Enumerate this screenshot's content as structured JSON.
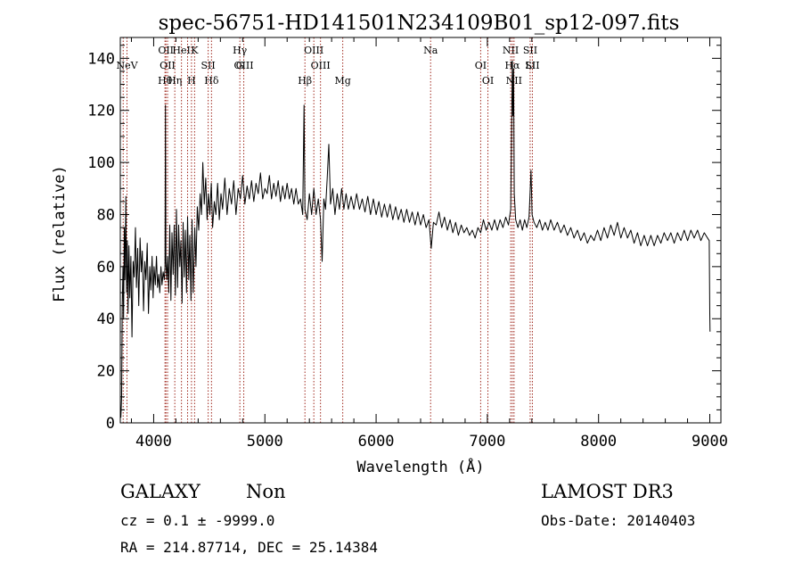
{
  "chart_data": {
    "type": "line",
    "title": "spec-56751-HD141501N234109B01_sp12-097.fits",
    "xlabel": "Wavelength (Å)",
    "ylabel": "Flux (relative)",
    "xlim": [
      3700,
      9100
    ],
    "ylim": [
      0,
      148
    ],
    "xticks": [
      4000,
      5000,
      6000,
      7000,
      8000,
      9000
    ],
    "yticks": [
      0,
      20,
      40,
      60,
      80,
      100,
      120,
      140
    ],
    "grid": false,
    "line_color": "#000000",
    "marker_color": "#a0291e",
    "series": [
      {
        "values": [
          [
            3705,
            2
          ],
          [
            3712,
            10
          ],
          [
            3718,
            45
          ],
          [
            3724,
            60
          ],
          [
            3730,
            40
          ],
          [
            3736,
            75
          ],
          [
            3742,
            55
          ],
          [
            3750,
            87
          ],
          [
            3756,
            50
          ],
          [
            3763,
            70
          ],
          [
            3770,
            42
          ],
          [
            3778,
            68
          ],
          [
            3786,
            48
          ],
          [
            3795,
            64
          ],
          [
            3805,
            33
          ],
          [
            3815,
            62
          ],
          [
            3825,
            56
          ],
          [
            3836,
            75
          ],
          [
            3845,
            52
          ],
          [
            3856,
            67
          ],
          [
            3866,
            45
          ],
          [
            3878,
            71
          ],
          [
            3888,
            58
          ],
          [
            3898,
            66
          ],
          [
            3909,
            43
          ],
          [
            3920,
            62
          ],
          [
            3931,
            55
          ],
          [
            3942,
            69
          ],
          [
            3953,
            42
          ],
          [
            3965,
            60
          ],
          [
            3975,
            51
          ],
          [
            3986,
            64
          ],
          [
            3995,
            48
          ],
          [
            4004,
            60
          ],
          [
            4015,
            53
          ],
          [
            4025,
            64
          ],
          [
            4035,
            52
          ],
          [
            4045,
            57
          ],
          [
            4055,
            50
          ],
          [
            4065,
            60
          ],
          [
            4075,
            53
          ],
          [
            4085,
            58
          ],
          [
            4095,
            55
          ],
          [
            4102,
            60
          ],
          [
            4106,
            122
          ],
          [
            4110,
            62
          ],
          [
            4118,
            55
          ],
          [
            4126,
            64
          ],
          [
            4136,
            50
          ],
          [
            4145,
            76
          ],
          [
            4155,
            47
          ],
          [
            4165,
            73
          ],
          [
            4175,
            57
          ],
          [
            4185,
            76
          ],
          [
            4195,
            49
          ],
          [
            4205,
            82
          ],
          [
            4215,
            52
          ],
          [
            4225,
            76
          ],
          [
            4235,
            60
          ],
          [
            4245,
            70
          ],
          [
            4255,
            46
          ],
          [
            4265,
            77
          ],
          [
            4275,
            56
          ],
          [
            4285,
            74
          ],
          [
            4295,
            50
          ],
          [
            4305,
            79
          ],
          [
            4315,
            55
          ],
          [
            4325,
            72
          ],
          [
            4335,
            47
          ],
          [
            4345,
            78
          ],
          [
            4355,
            50
          ],
          [
            4370,
            75
          ],
          [
            4380,
            60
          ],
          [
            4392,
            83
          ],
          [
            4405,
            74
          ],
          [
            4418,
            88
          ],
          [
            4430,
            80
          ],
          [
            4442,
            100
          ],
          [
            4455,
            84
          ],
          [
            4468,
            94
          ],
          [
            4480,
            78
          ],
          [
            4492,
            88
          ],
          [
            4505,
            80
          ],
          [
            4518,
            92
          ],
          [
            4530,
            75
          ],
          [
            4545,
            85
          ],
          [
            4560,
            80
          ],
          [
            4575,
            92
          ],
          [
            4590,
            78
          ],
          [
            4605,
            88
          ],
          [
            4620,
            82
          ],
          [
            4640,
            94
          ],
          [
            4660,
            80
          ],
          [
            4680,
            90
          ],
          [
            4700,
            84
          ],
          [
            4720,
            93
          ],
          [
            4740,
            80
          ],
          [
            4760,
            90
          ],
          [
            4780,
            86
          ],
          [
            4800,
            95
          ],
          [
            4820,
            84
          ],
          [
            4840,
            91
          ],
          [
            4860,
            86
          ],
          [
            4880,
            93
          ],
          [
            4900,
            85
          ],
          [
            4920,
            92
          ],
          [
            4940,
            88
          ],
          [
            4960,
            96
          ],
          [
            4980,
            86
          ],
          [
            5000,
            90
          ],
          [
            5020,
            88
          ],
          [
            5040,
            95
          ],
          [
            5060,
            86
          ],
          [
            5080,
            92
          ],
          [
            5100,
            87
          ],
          [
            5120,
            93
          ],
          [
            5140,
            85
          ],
          [
            5160,
            91
          ],
          [
            5180,
            86
          ],
          [
            5200,
            92
          ],
          [
            5220,
            86
          ],
          [
            5240,
            90
          ],
          [
            5260,
            84
          ],
          [
            5280,
            90
          ],
          [
            5300,
            84
          ],
          [
            5320,
            86
          ],
          [
            5340,
            80
          ],
          [
            5352,
            122
          ],
          [
            5360,
            82
          ],
          [
            5380,
            78
          ],
          [
            5400,
            88
          ],
          [
            5420,
            80
          ],
          [
            5440,
            90
          ],
          [
            5460,
            80
          ],
          [
            5480,
            86
          ],
          [
            5500,
            78
          ],
          [
            5515,
            62
          ],
          [
            5530,
            86
          ],
          [
            5545,
            82
          ],
          [
            5560,
            94
          ],
          [
            5575,
            107
          ],
          [
            5590,
            84
          ],
          [
            5610,
            90
          ],
          [
            5630,
            80
          ],
          [
            5650,
            88
          ],
          [
            5670,
            82
          ],
          [
            5690,
            90
          ],
          [
            5710,
            82
          ],
          [
            5730,
            88
          ],
          [
            5750,
            82
          ],
          [
            5775,
            87
          ],
          [
            5800,
            82
          ],
          [
            5825,
            88
          ],
          [
            5850,
            82
          ],
          [
            5875,
            86
          ],
          [
            5900,
            81
          ],
          [
            5925,
            87
          ],
          [
            5950,
            80
          ],
          [
            5975,
            86
          ],
          [
            6000,
            80
          ],
          [
            6025,
            85
          ],
          [
            6050,
            79
          ],
          [
            6075,
            84
          ],
          [
            6100,
            79
          ],
          [
            6125,
            84
          ],
          [
            6150,
            78
          ],
          [
            6175,
            83
          ],
          [
            6200,
            78
          ],
          [
            6225,
            82
          ],
          [
            6250,
            77
          ],
          [
            6275,
            82
          ],
          [
            6300,
            77
          ],
          [
            6325,
            81
          ],
          [
            6350,
            76
          ],
          [
            6375,
            81
          ],
          [
            6400,
            76
          ],
          [
            6425,
            80
          ],
          [
            6450,
            75
          ],
          [
            6475,
            78
          ],
          [
            6495,
            67
          ],
          [
            6515,
            77
          ],
          [
            6540,
            76
          ],
          [
            6565,
            81
          ],
          [
            6590,
            75
          ],
          [
            6615,
            79
          ],
          [
            6640,
            74
          ],
          [
            6665,
            78
          ],
          [
            6690,
            73
          ],
          [
            6715,
            77
          ],
          [
            6740,
            72
          ],
          [
            6765,
            76
          ],
          [
            6790,
            73
          ],
          [
            6815,
            75
          ],
          [
            6840,
            72
          ],
          [
            6865,
            74
          ],
          [
            6890,
            71
          ],
          [
            6915,
            75
          ],
          [
            6940,
            73
          ],
          [
            6965,
            78
          ],
          [
            6990,
            74
          ],
          [
            7015,
            77
          ],
          [
            7040,
            74
          ],
          [
            7065,
            78
          ],
          [
            7090,
            74
          ],
          [
            7115,
            78
          ],
          [
            7140,
            75
          ],
          [
            7165,
            79
          ],
          [
            7190,
            76
          ],
          [
            7210,
            82
          ],
          [
            7218,
            112
          ],
          [
            7225,
            139
          ],
          [
            7230,
            118
          ],
          [
            7236,
            136
          ],
          [
            7242,
            88
          ],
          [
            7255,
            78
          ],
          [
            7275,
            75
          ],
          [
            7295,
            78
          ],
          [
            7315,
            74
          ],
          [
            7335,
            78
          ],
          [
            7355,
            75
          ],
          [
            7375,
            79
          ],
          [
            7393,
            97
          ],
          [
            7402,
            80
          ],
          [
            7420,
            77
          ],
          [
            7445,
            75
          ],
          [
            7470,
            78
          ],
          [
            7495,
            74
          ],
          [
            7520,
            77
          ],
          [
            7545,
            74
          ],
          [
            7570,
            78
          ],
          [
            7600,
            74
          ],
          [
            7630,
            77
          ],
          [
            7660,
            73
          ],
          [
            7690,
            76
          ],
          [
            7720,
            72
          ],
          [
            7750,
            75
          ],
          [
            7780,
            71
          ],
          [
            7810,
            74
          ],
          [
            7840,
            70
          ],
          [
            7870,
            73
          ],
          [
            7900,
            69
          ],
          [
            7930,
            72
          ],
          [
            7960,
            70
          ],
          [
            7990,
            74
          ],
          [
            8020,
            70
          ],
          [
            8050,
            75
          ],
          [
            8080,
            71
          ],
          [
            8110,
            76
          ],
          [
            8140,
            72
          ],
          [
            8170,
            77
          ],
          [
            8200,
            71
          ],
          [
            8230,
            75
          ],
          [
            8260,
            71
          ],
          [
            8290,
            74
          ],
          [
            8320,
            69
          ],
          [
            8350,
            73
          ],
          [
            8380,
            68
          ],
          [
            8410,
            72
          ],
          [
            8440,
            68
          ],
          [
            8470,
            72
          ],
          [
            8500,
            68
          ],
          [
            8530,
            72
          ],
          [
            8560,
            69
          ],
          [
            8590,
            73
          ],
          [
            8620,
            70
          ],
          [
            8650,
            73
          ],
          [
            8680,
            69
          ],
          [
            8710,
            73
          ],
          [
            8740,
            70
          ],
          [
            8770,
            74
          ],
          [
            8800,
            70
          ],
          [
            8830,
            74
          ],
          [
            8860,
            71
          ],
          [
            8890,
            74
          ],
          [
            8920,
            70
          ],
          [
            8950,
            73
          ],
          [
            8980,
            71
          ],
          [
            8995,
            70
          ],
          [
            9000,
            42
          ],
          [
            9002,
            35
          ]
        ]
      }
    ],
    "line_markers": [
      {
        "wavelength": 3726,
        "labels": []
      },
      {
        "wavelength": 3760,
        "labels": [
          "NeV"
        ]
      },
      {
        "wavelength": 4102,
        "labels": [
          "Hθ"
        ]
      },
      {
        "wavelength": 4110,
        "labels": [
          "OII"
        ]
      },
      {
        "wavelength": 4125,
        "labels": [
          "OII"
        ]
      },
      {
        "wavelength": 4190,
        "labels": [
          "Hη"
        ]
      },
      {
        "wavelength": 4250,
        "labels": [
          "HeI"
        ]
      },
      {
        "wavelength": 4305,
        "labels": []
      },
      {
        "wavelength": 4340,
        "labels": [
          "H"
        ]
      },
      {
        "wavelength": 4368,
        "labels": [
          "K"
        ]
      },
      {
        "wavelength": 4490,
        "labels": [
          "SII"
        ]
      },
      {
        "wavelength": 4520,
        "labels": [
          "Hδ"
        ]
      },
      {
        "wavelength": 4775,
        "labels": [
          "Hγ",
          "G"
        ]
      },
      {
        "wavelength": 4810,
        "labels": [
          "OIII"
        ]
      },
      {
        "wavelength": 5360,
        "labels": [
          "Hβ"
        ]
      },
      {
        "wavelength": 5440,
        "labels": [
          "OIII"
        ]
      },
      {
        "wavelength": 5500,
        "labels": [
          "OIII"
        ]
      },
      {
        "wavelength": 5700,
        "labels": [
          "Mg"
        ]
      },
      {
        "wavelength": 6490,
        "labels": [
          "Na"
        ]
      },
      {
        "wavelength": 6940,
        "labels": [
          "OI"
        ]
      },
      {
        "wavelength": 7005,
        "labels": [
          "OI"
        ]
      },
      {
        "wavelength": 7210,
        "labels": [
          "NII"
        ]
      },
      {
        "wavelength": 7225,
        "labels": [
          "Hα"
        ]
      },
      {
        "wavelength": 7240,
        "labels": [
          "NII"
        ]
      },
      {
        "wavelength": 7385,
        "labels": [
          "SII",
          "Li"
        ]
      },
      {
        "wavelength": 7405,
        "labels": [
          "SII"
        ]
      }
    ]
  },
  "info": {
    "class": "GALAXY",
    "subclass": "Non",
    "cz": "cz = 0.1 ± -9999.0",
    "coords": "RA = 214.87714, DEC =  25.14384",
    "survey": "LAMOST DR3",
    "obs_date": "Obs-Date: 20140403"
  }
}
